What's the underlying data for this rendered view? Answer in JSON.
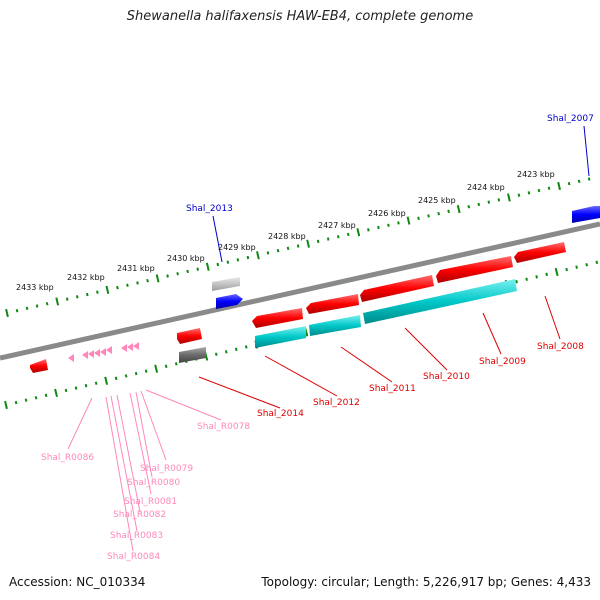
{
  "title": "Shewanella halifaxensis HAW-EB4, complete genome",
  "footer": {
    "accession": "Accession: NC_010334",
    "summary": "Topology: circular; Length: 5,226,917 bp; Genes: 4,433"
  },
  "colors": {
    "backbone": "#8a8a8a",
    "tick": "#118811",
    "gene_forward": "#ff0000",
    "gene_reverse": "#ff0000",
    "cds_teal": "#00c8c8",
    "trna": "#ff88bb",
    "gene_blue": "#0000ff",
    "gray_feature": "#7a7a7a",
    "label_red": "#dd0000",
    "label_blue": "#0000cc",
    "label_pink": "#ff88bb"
  },
  "scale_labels": [
    "2433 kbp",
    "2432 kbp",
    "2431 kbp",
    "2430 kbp",
    "2429 kbp",
    "2428 kbp",
    "2427 kbp",
    "2426 kbp",
    "2425 kbp",
    "2424 kbp",
    "2423 kbp"
  ],
  "gene_labels": {
    "shal_2007": "Shal_2007",
    "shal_2008": "Shal_2008",
    "shal_2009": "Shal_2009",
    "shal_2010": "Shal_2010",
    "shal_2011": "Shal_2011",
    "shal_2012": "Shal_2012",
    "shal_2013": "Shal_2013",
    "shal_2014": "Shal_2014",
    "shal_r0078": "Shal_R0078",
    "shal_r0079": "Shal_R0079",
    "shal_r0080": "Shal_R0080",
    "shal_r0081": "Shal_R0081",
    "shal_r0082": "Shal_R0082",
    "shal_r0083": "Shal_R0083",
    "shal_r0084": "Shal_R0084",
    "shal_r0086": "Shal_R0086"
  }
}
